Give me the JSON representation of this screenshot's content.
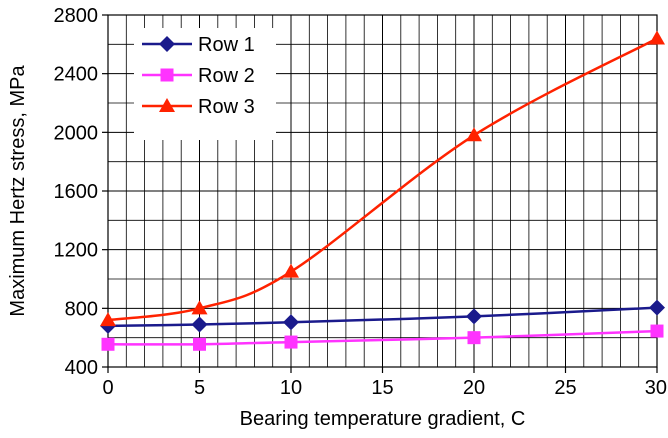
{
  "chart_data": {
    "type": "line",
    "title": "",
    "xlabel": "Bearing temperature gradient, C",
    "ylabel": "Maximum Hertz stress, MPa",
    "xlim": [
      0,
      30
    ],
    "ylim": [
      400,
      2800
    ],
    "x_ticks": [
      0,
      5,
      10,
      15,
      20,
      25,
      30
    ],
    "y_ticks": [
      400,
      800,
      1200,
      1600,
      2000,
      2400,
      2800
    ],
    "x_ticks_text": [
      "0",
      "5",
      "10",
      "15",
      "20",
      "25",
      "30"
    ],
    "y_ticks_text": [
      "400",
      "800",
      "1200",
      "1600",
      "2000",
      "2400",
      "2800"
    ],
    "grid": true,
    "smooth": true,
    "legend_position": "top-left",
    "x": [
      0,
      5,
      10,
      20,
      30
    ],
    "series": [
      {
        "name": "Row 1",
        "color": "#1a1a8c",
        "marker": "diamond",
        "values": [
          680,
          690,
          705,
          745,
          805
        ]
      },
      {
        "name": "Row 2",
        "color": "#ff33ff",
        "marker": "square",
        "values": [
          555,
          555,
          570,
          600,
          645
        ]
      },
      {
        "name": "Row 3",
        "color": "#ff2200",
        "marker": "triangle",
        "values": [
          720,
          800,
          1050,
          1980,
          2640
        ]
      }
    ]
  }
}
